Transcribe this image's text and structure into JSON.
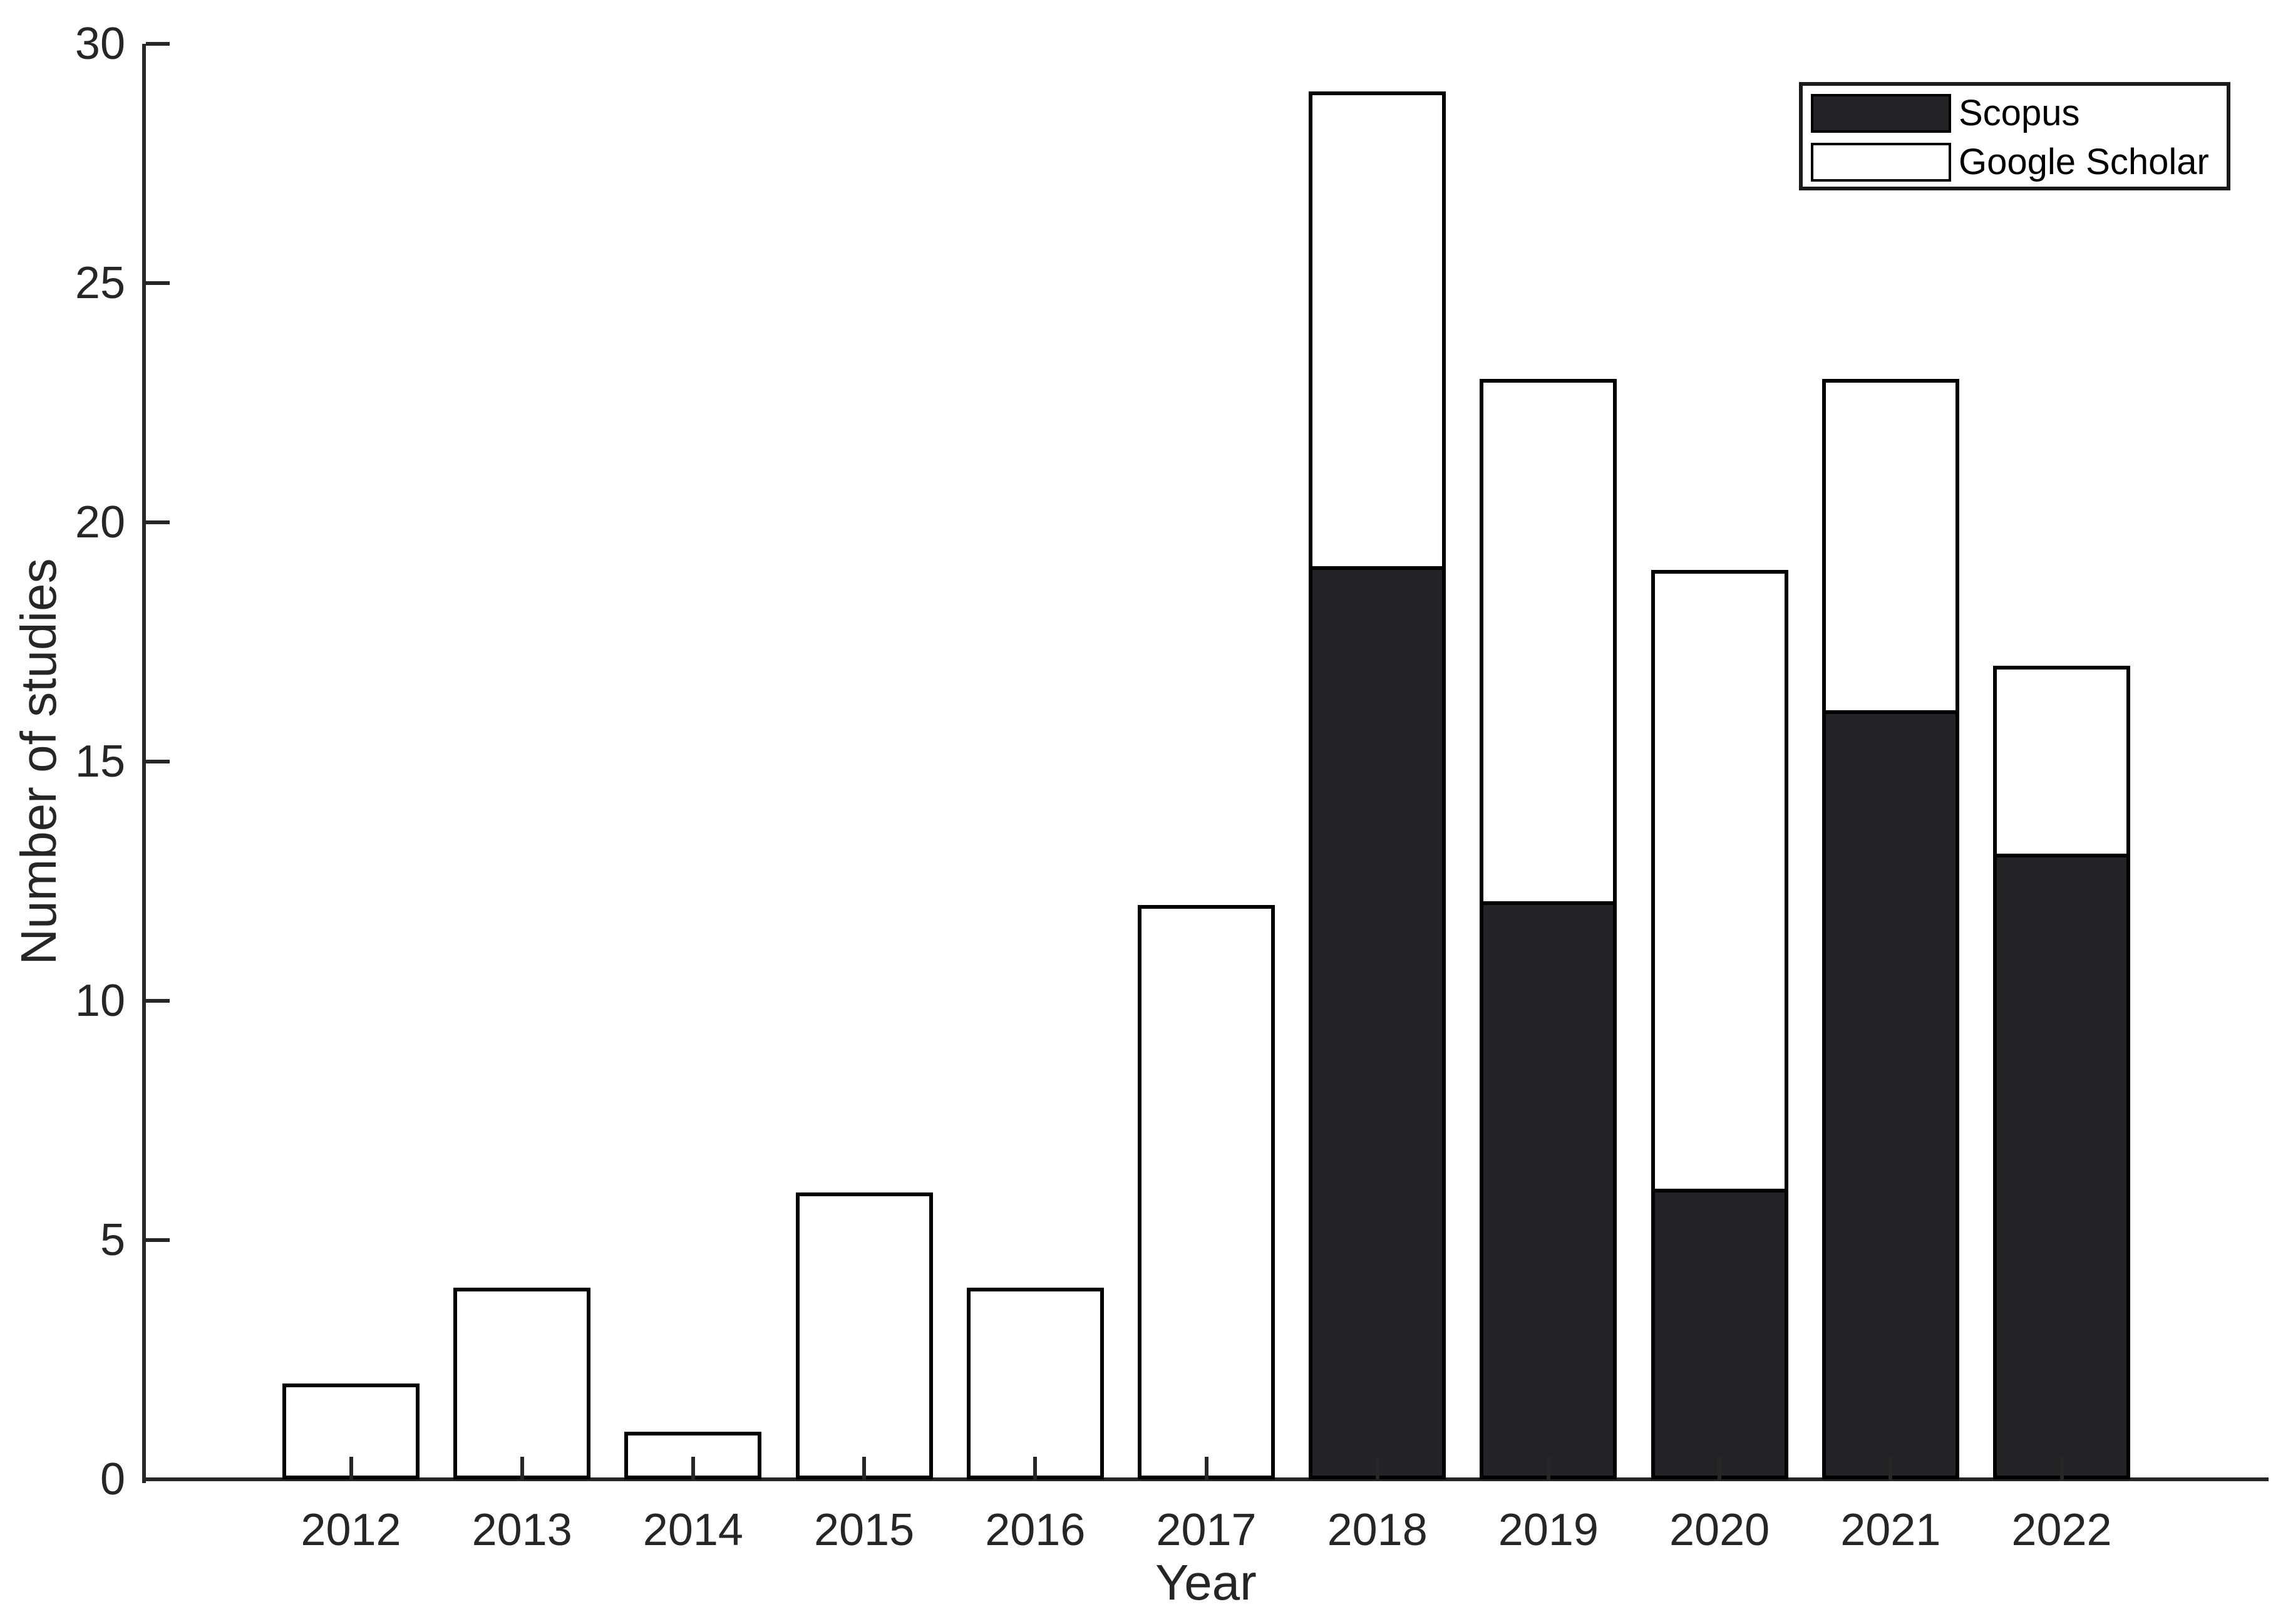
{
  "figure": {
    "background": "#ffffff",
    "axis_color": "#262626",
    "text_color": "#262626",
    "bar_border_color": "#000000",
    "scopus_fill": "#242426",
    "google_scholar_fill": "#ffffff"
  },
  "chart_data": {
    "type": "bar",
    "stacked": true,
    "title": "",
    "xlabel": "Year",
    "ylabel": "Number of studies",
    "categories": [
      "2012",
      "2013",
      "2014",
      "2015",
      "2016",
      "2017",
      "2018",
      "2019",
      "2020",
      "2021",
      "2022"
    ],
    "series": [
      {
        "name": "Scopus",
        "color": "#242426",
        "values": [
          0,
          0,
          0,
          0,
          0,
          0,
          19,
          12,
          6,
          16,
          13
        ]
      },
      {
        "name": "Google Scholar",
        "color": "#ffffff",
        "values": [
          2,
          4,
          1,
          6,
          4,
          12,
          10,
          11,
          13,
          7,
          4
        ]
      }
    ],
    "totals": [
      2,
      4,
      1,
      6,
      4,
      12,
      29,
      23,
      19,
      23,
      17
    ],
    "ylim": [
      0,
      30
    ],
    "yticks": [
      0,
      5,
      10,
      15,
      20,
      25,
      30
    ],
    "grid": false,
    "legend_position": "top-right",
    "legend_entries": [
      "Scopus",
      "Google Scholar"
    ]
  }
}
